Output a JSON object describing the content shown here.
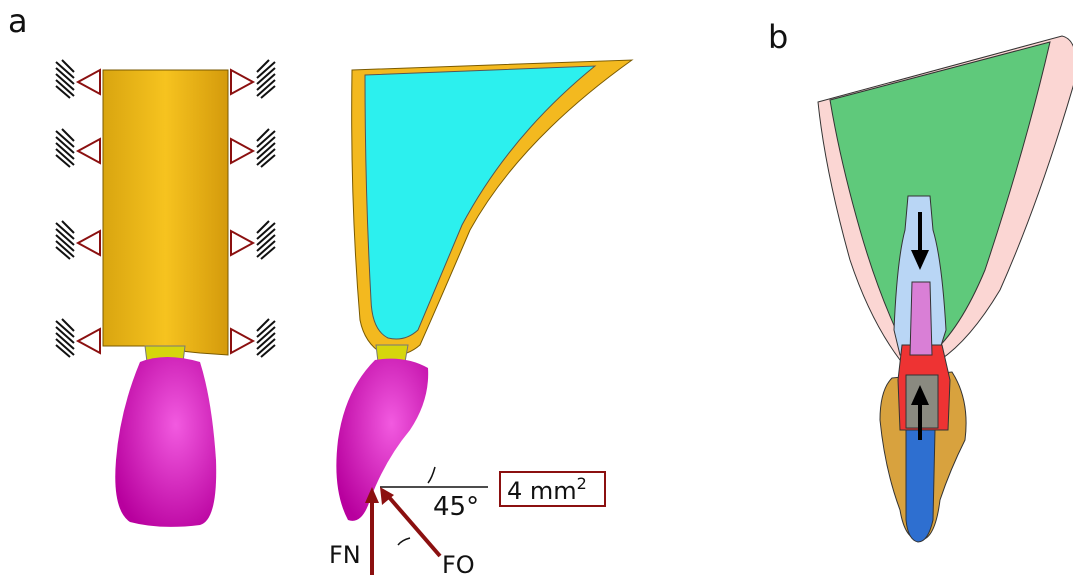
{
  "panels": [
    {
      "label": "a",
      "annotations": {
        "angle": "45°",
        "area": "4 mm",
        "area_exponent": "2",
        "normal_force": "FN",
        "oblique_force": "FO"
      }
    },
    {
      "label": "b"
    }
  ]
}
